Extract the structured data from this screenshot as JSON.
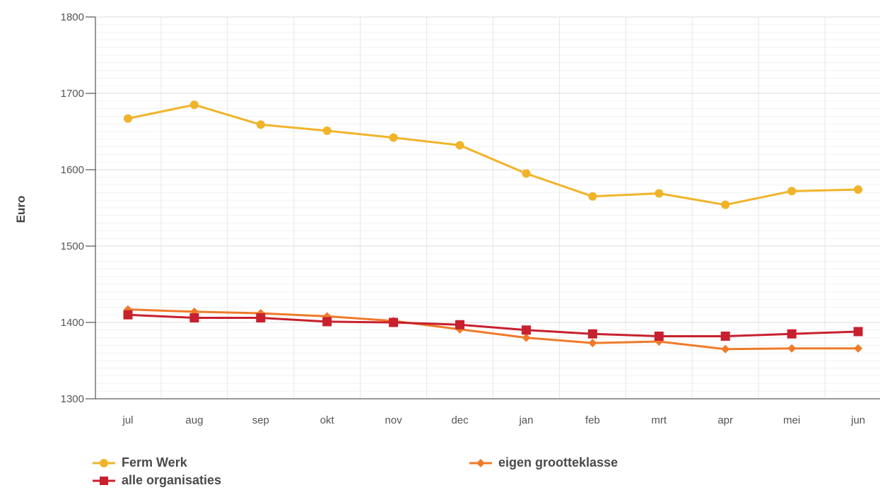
{
  "chart_data": {
    "type": "line",
    "title": "",
    "xlabel": "",
    "ylabel": "Euro",
    "ylim": [
      1300,
      1800
    ],
    "yticks": [
      1300,
      1400,
      1500,
      1600,
      1700,
      1800
    ],
    "grid": true,
    "legend_position": "bottom",
    "categories": [
      "jul",
      "aug",
      "sep",
      "okt",
      "nov",
      "dec",
      "jan",
      "feb",
      "mrt",
      "apr",
      "mei",
      "jun"
    ],
    "series": [
      {
        "name": "Ferm Werk",
        "color": "#f0b429",
        "marker": "circle",
        "values": [
          1667,
          1685,
          1659,
          1651,
          1642,
          1632,
          1595,
          1565,
          1569,
          1554,
          1572,
          1574
        ]
      },
      {
        "name": "eigen grootteklasse",
        "color": "#f07a2a",
        "marker": "diamond",
        "values": [
          1417,
          1414,
          1412,
          1408,
          1402,
          1391,
          1380,
          1373,
          1375,
          1365,
          1366,
          1366
        ]
      },
      {
        "name": "alle organisaties",
        "color": "#c8202e",
        "marker": "square",
        "values": [
          1410,
          1406,
          1406,
          1401,
          1400,
          1397,
          1390,
          1385,
          1382,
          1382,
          1385,
          1388
        ]
      }
    ]
  }
}
